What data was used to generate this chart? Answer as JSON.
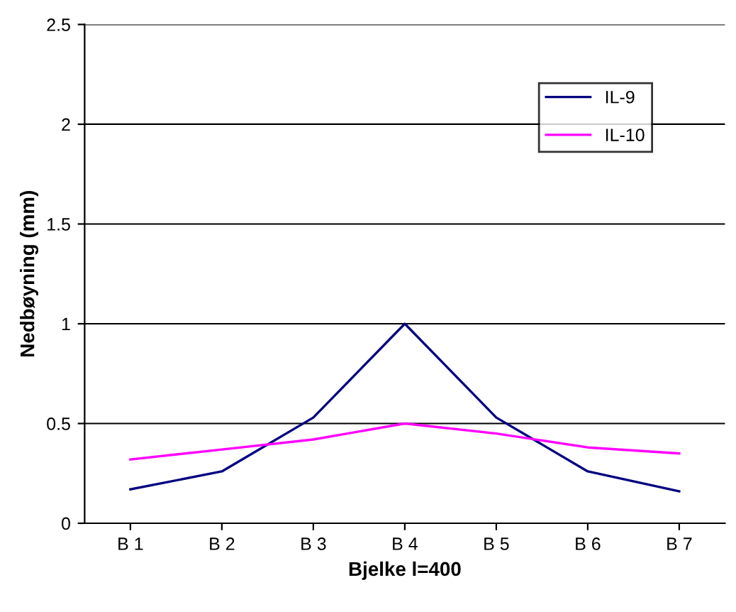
{
  "chart_data": {
    "type": "line",
    "xlabel": "Bjelke l=400",
    "ylabel": "Nedbøyning (mm)",
    "categories": [
      "B 1",
      "B 2",
      "B 3",
      "B 4",
      "B 5",
      "B 6",
      "B 7"
    ],
    "series": [
      {
        "name": "IL-9",
        "color": "#000080",
        "values": [
          0.17,
          0.26,
          0.53,
          1.0,
          0.53,
          0.26,
          0.16
        ]
      },
      {
        "name": "IL-10",
        "color": "#ff00ff",
        "values": [
          0.32,
          0.37,
          0.42,
          0.5,
          0.45,
          0.38,
          0.35
        ]
      }
    ],
    "ylim": [
      0,
      2.5
    ],
    "yticks": [
      0,
      0.5,
      1,
      1.5,
      2,
      2.5
    ],
    "grid": "y",
    "legend": "top right",
    "marker": "none",
    "line_style": "solid"
  }
}
